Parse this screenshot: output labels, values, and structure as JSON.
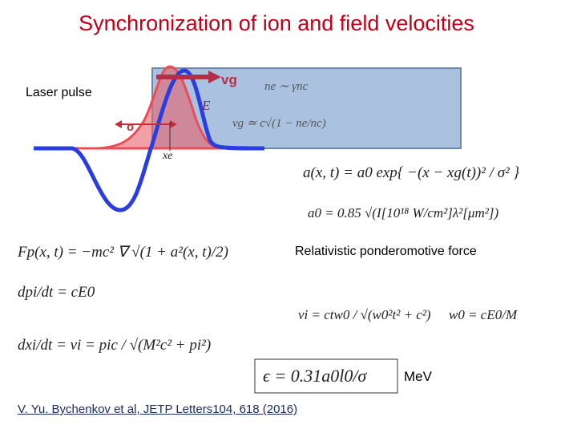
{
  "title": "Synchronization of ion and field velocities",
  "figure": {
    "laser_label": "Laser pulse",
    "group_velocity": "vg",
    "field": "E",
    "width": "σ",
    "electron_position": "xe",
    "density_relation": "ne ∼ γnc",
    "velocity_relation": "vg ≃ c√(1 − ne/nc)"
  },
  "equations": {
    "pulse_shape": "a(x, t) = a0 exp{ −(x − xg(t))² / σ² }",
    "amplitude": "a0 = 0.85 √(I[10¹⁸ W/cm²]λ²[μm²])",
    "ponderomotive_label": "Relativistic ponderomotive force",
    "ponderomotive": "Fp(x, t) = −mc² ∇ √(1 + a²(x, t)/2)",
    "momentum": "dpi/dt = cE0",
    "position": "dxi/dt = vi = pic / √(M²c² + pi²)",
    "ion_velocity": "vi = ctw0 / √(w0²t² + c²)",
    "frequency": "w0 = cE0/M",
    "energy": "ϵ = 0.31a0l0/σ",
    "energy_unit": "MeV"
  },
  "citation": "V. Yu. Bychenkov et al, JETP Letters104, 618 (2016)"
}
